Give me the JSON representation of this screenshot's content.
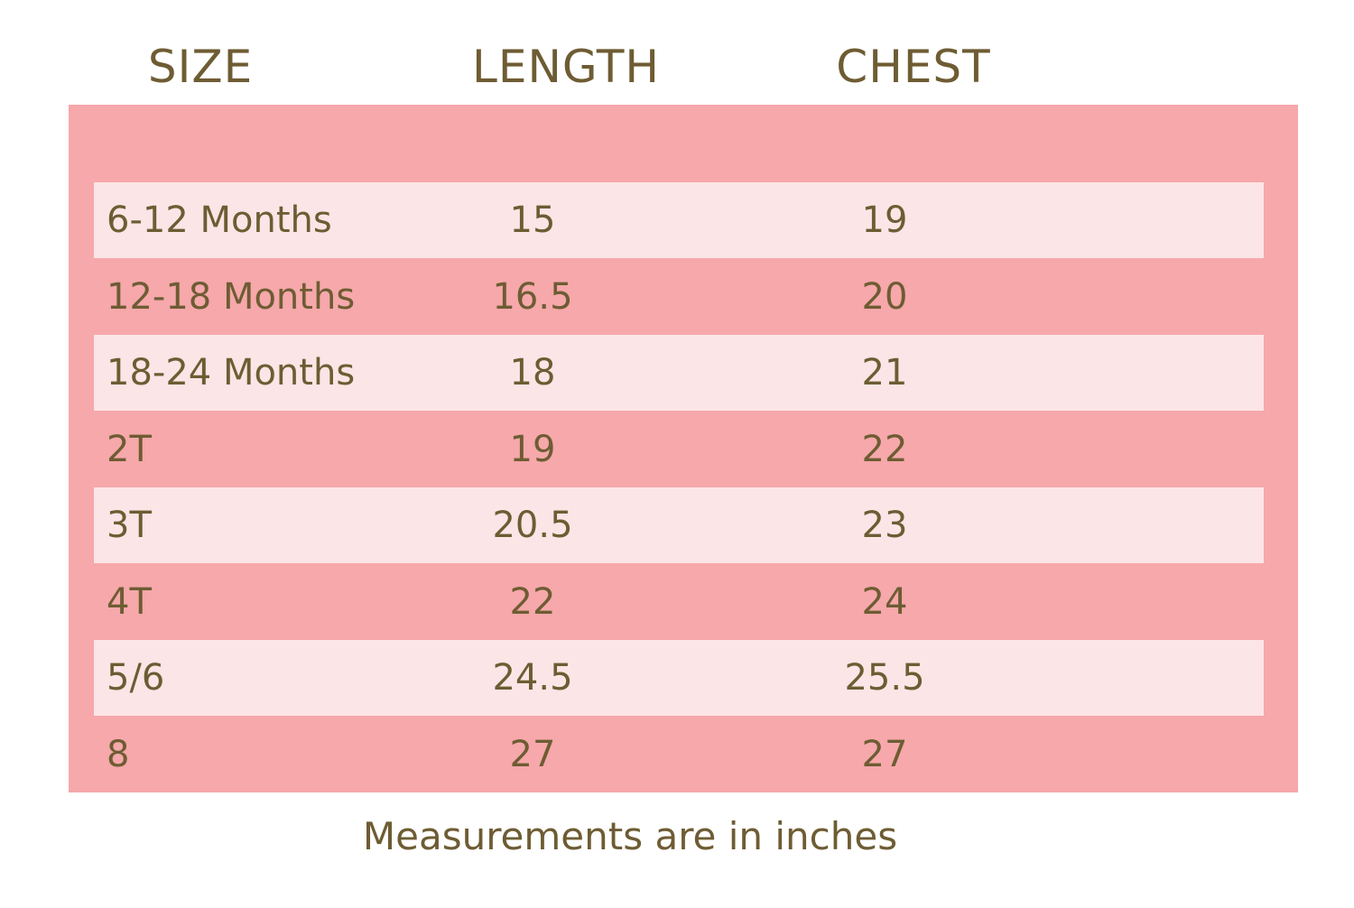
{
  "table": {
    "header": [
      "SIZE",
      "LENGTH",
      "CHEST"
    ],
    "rows": [
      [
        "6-12 Months",
        "15",
        "19"
      ],
      [
        "12-18 Months",
        "16.5",
        "20"
      ],
      [
        "18-24 Months",
        "18",
        "21"
      ],
      [
        "2T",
        "19",
        "22"
      ],
      [
        "3T",
        "20.5",
        "23"
      ],
      [
        "4T",
        "22",
        "24"
      ],
      [
        "5/6",
        "24.5",
        "25.5"
      ],
      [
        "8",
        "27",
        "27"
      ]
    ]
  },
  "footer": "Measurements are in inches"
}
